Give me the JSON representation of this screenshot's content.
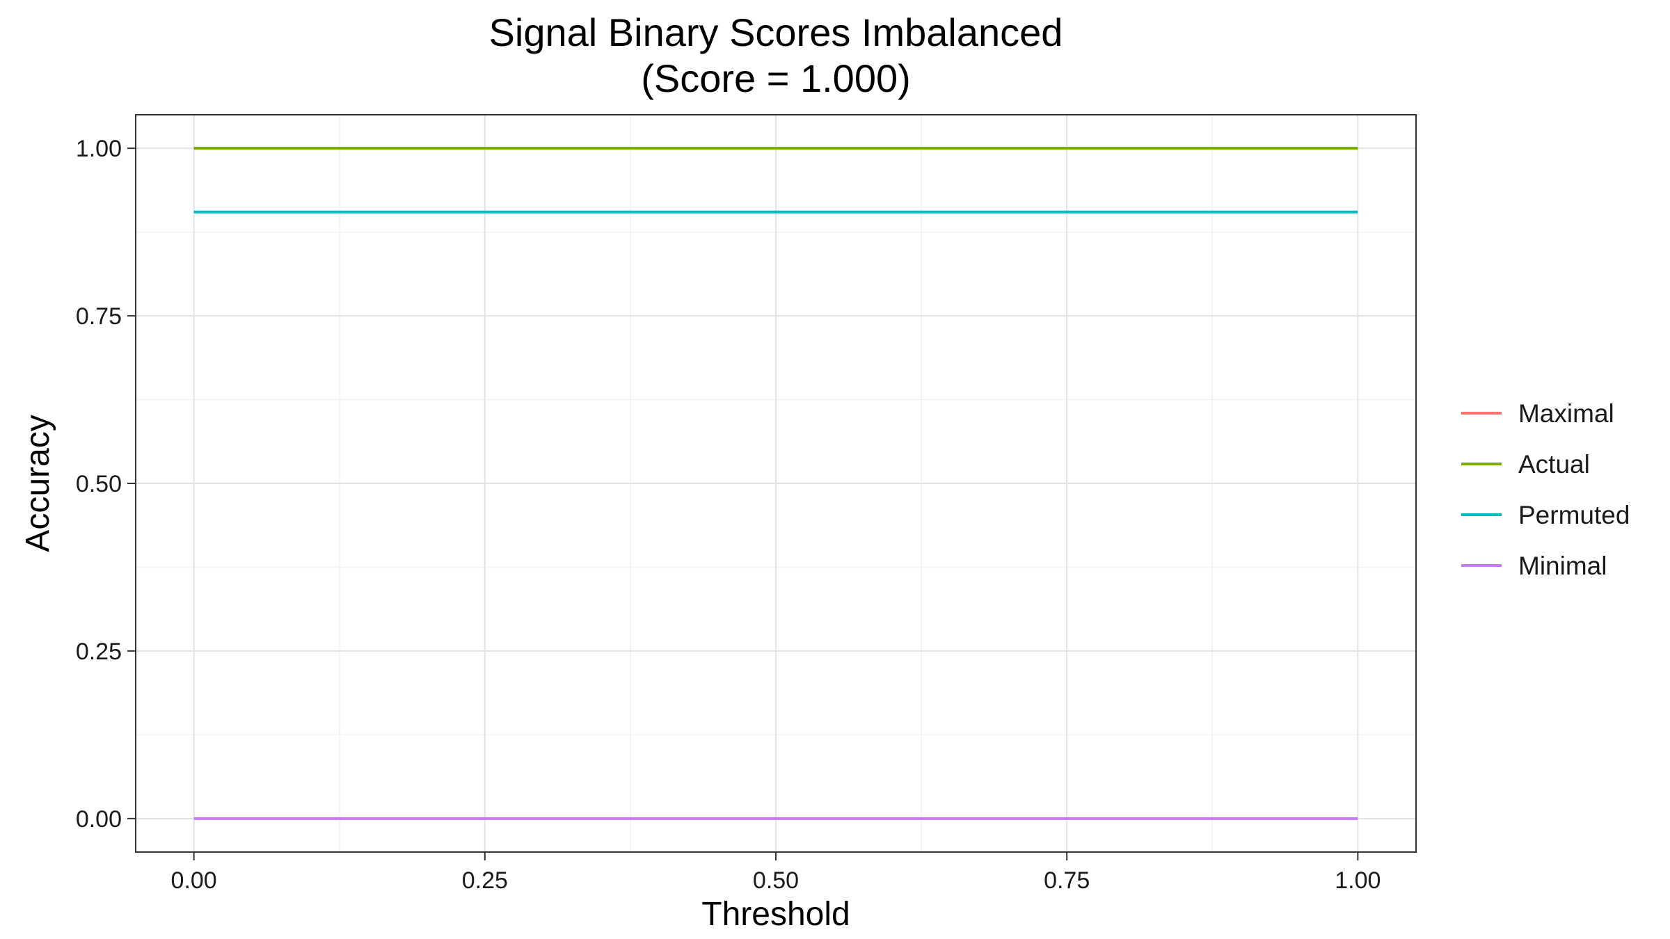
{
  "chart_data": {
    "type": "line",
    "title": "Signal Binary Scores Imbalanced",
    "subtitle": "(Score = 1.000)",
    "xlabel": "Threshold",
    "ylabel": "Accuracy",
    "xlim": [
      -0.05,
      1.05
    ],
    "ylim": [
      -0.05,
      1.05
    ],
    "xticks": [
      "0.00",
      "0.25",
      "0.50",
      "0.75",
      "1.00"
    ],
    "yticks": [
      "0.00",
      "0.25",
      "0.50",
      "0.75",
      "1.00"
    ],
    "grid": true,
    "legend_position": "right",
    "series": [
      {
        "name": "Maximal",
        "color": "#F8766D",
        "x": [
          0,
          1
        ],
        "y": [
          1.0,
          1.0
        ]
      },
      {
        "name": "Actual",
        "color": "#7CAE00",
        "x": [
          0,
          1
        ],
        "y": [
          1.0,
          1.0
        ]
      },
      {
        "name": "Permuted",
        "color": "#00BFC4",
        "x": [
          0,
          1
        ],
        "y": [
          0.905,
          0.905
        ]
      },
      {
        "name": "Minimal",
        "color": "#C77CFF",
        "x": [
          0,
          1
        ],
        "y": [
          0.0,
          0.0
        ]
      }
    ]
  }
}
